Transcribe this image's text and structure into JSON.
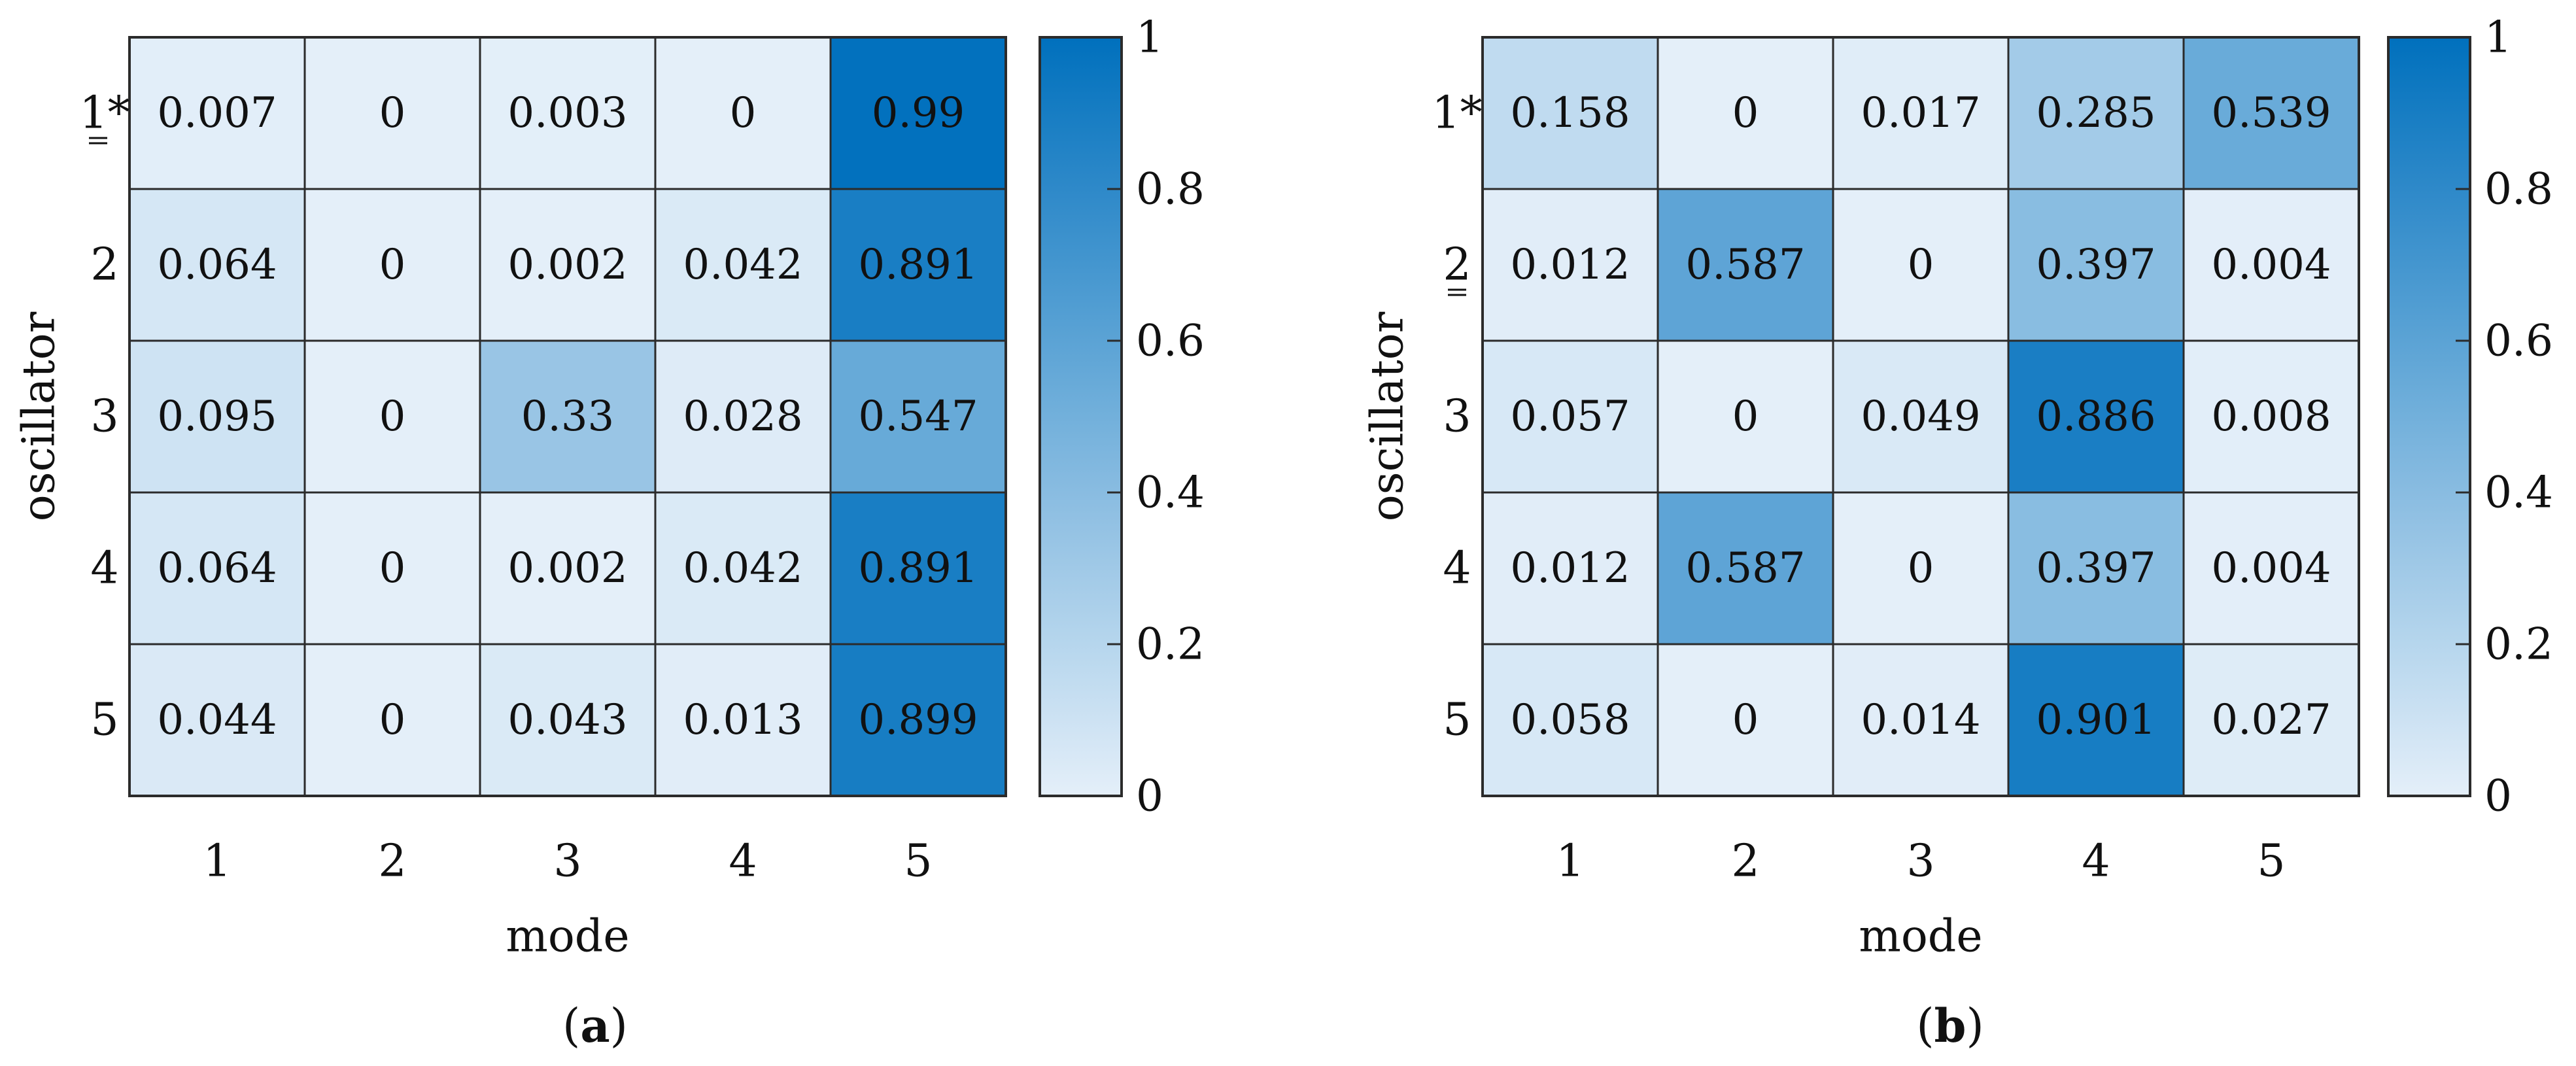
{
  "chart_data": [
    {
      "type": "heatmap",
      "panel_label": "(a)",
      "panel_letter": "a",
      "xlabel": "mode",
      "ylabel": "oscillator",
      "x_categories": [
        "1",
        "2",
        "3",
        "4",
        "5"
      ],
      "y_categories": [
        "1*",
        "2",
        "3",
        "4",
        "5"
      ],
      "highlighted_row_label": "1*",
      "values": [
        [
          0.007,
          0,
          0.003,
          0,
          0.99
        ],
        [
          0.064,
          0,
          0.002,
          0.042,
          0.891
        ],
        [
          0.095,
          0,
          0.33,
          0.028,
          0.547
        ],
        [
          0.064,
          0,
          0.002,
          0.042,
          0.891
        ],
        [
          0.044,
          0,
          0.043,
          0.013,
          0.899
        ]
      ],
      "colorbar": {
        "range": [
          0,
          1
        ],
        "ticks": [
          "0",
          "0.2",
          "0.4",
          "0.6",
          "0.8",
          "1"
        ]
      }
    },
    {
      "type": "heatmap",
      "panel_label": "(b)",
      "panel_letter": "b",
      "xlabel": "mode",
      "ylabel": "oscillator",
      "x_categories": [
        "1",
        "2",
        "3",
        "4",
        "5"
      ],
      "y_categories": [
        "1*",
        "2",
        "3",
        "4",
        "5"
      ],
      "highlighted_row_label": "2",
      "values": [
        [
          0.158,
          0,
          0.017,
          0.285,
          0.539
        ],
        [
          0.012,
          0.587,
          0,
          0.397,
          0.004
        ],
        [
          0.057,
          0,
          0.049,
          0.886,
          0.008
        ],
        [
          0.012,
          0.587,
          0,
          0.397,
          0.004
        ],
        [
          0.058,
          0,
          0.014,
          0.901,
          0.027
        ]
      ],
      "colorbar": {
        "range": [
          0,
          1
        ],
        "ticks": [
          "0",
          "0.2",
          "0.4",
          "0.6",
          "0.8",
          "1"
        ]
      }
    }
  ],
  "colors": {
    "colormap_low": "#e4eff9",
    "colormap_high": "#0070bd",
    "grid_line": "#2b2b2b",
    "text": "#111111"
  }
}
